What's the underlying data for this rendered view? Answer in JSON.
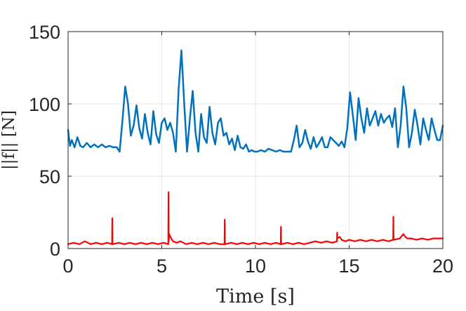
{
  "chart_data": {
    "type": "line",
    "title": "",
    "xlabel": "Time [s]",
    "ylabel": "||f|| [N]",
    "xlim": [
      0,
      20
    ],
    "ylim": [
      0,
      150
    ],
    "xticks": [
      0,
      5,
      10,
      15,
      20
    ],
    "yticks": [
      0,
      50,
      100,
      150
    ],
    "xtick_labels": [
      "0",
      "5",
      "10",
      "15",
      "20"
    ],
    "ytick_labels": [
      "0",
      "50",
      "100",
      "150"
    ],
    "grid": true,
    "legend": "none",
    "series": [
      {
        "color": "#0072BD",
        "x": [
          0,
          0.1,
          0.2,
          0.35,
          0.5,
          0.65,
          0.8,
          1.0,
          1.2,
          1.4,
          1.6,
          1.8,
          2.0,
          2.2,
          2.4,
          2.6,
          2.75,
          2.9,
          3.05,
          3.2,
          3.35,
          3.5,
          3.65,
          3.8,
          3.95,
          4.1,
          4.25,
          4.4,
          4.55,
          4.7,
          4.85,
          5.0,
          5.15,
          5.3,
          5.45,
          5.6,
          5.75,
          5.9,
          6.05,
          6.2,
          6.35,
          6.5,
          6.65,
          6.8,
          6.95,
          7.1,
          7.25,
          7.4,
          7.55,
          7.7,
          7.85,
          8.0,
          8.15,
          8.3,
          8.45,
          8.6,
          8.75,
          8.9,
          9.05,
          9.2,
          9.35,
          9.5,
          9.65,
          9.8,
          9.95,
          10.1,
          10.3,
          10.5,
          10.7,
          10.9,
          11.1,
          11.3,
          11.5,
          11.7,
          11.9,
          12.05,
          12.2,
          12.35,
          12.5,
          12.65,
          12.8,
          12.95,
          13.1,
          13.25,
          13.4,
          13.55,
          13.7,
          13.85,
          14.0,
          14.15,
          14.3,
          14.45,
          14.6,
          14.75,
          14.9,
          15.05,
          15.2,
          15.35,
          15.5,
          15.65,
          15.8,
          15.95,
          16.1,
          16.25,
          16.4,
          16.55,
          16.7,
          16.85,
          17.0,
          17.15,
          17.3,
          17.45,
          17.6,
          17.75,
          17.9,
          18.05,
          18.2,
          18.35,
          18.5,
          18.65,
          18.8,
          18.95,
          19.1,
          19.25,
          19.4,
          19.55,
          19.7,
          19.85,
          20.0
        ],
        "y": [
          82,
          71,
          75,
          70,
          77,
          71,
          70,
          73,
          70,
          72,
          70,
          72,
          70,
          71,
          70,
          70,
          67,
          88,
          112,
          100,
          78,
          85,
          99,
          83,
          76,
          93,
          80,
          72,
          95,
          79,
          73,
          87,
          90,
          82,
          87,
          80,
          67,
          110,
          137,
          100,
          67,
          90,
          109,
          80,
          67,
          93,
          77,
          73,
          98,
          80,
          72,
          87,
          90,
          78,
          80,
          72,
          76,
          68,
          78,
          70,
          69,
          72,
          67,
          68,
          67,
          67,
          68,
          67,
          69,
          68,
          67,
          68,
          67,
          67,
          67,
          75,
          85,
          70,
          73,
          82,
          74,
          69,
          77,
          70,
          73,
          77,
          70,
          70,
          77,
          75,
          73,
          71,
          74,
          70,
          83,
          108,
          92,
          75,
          104,
          90,
          80,
          97,
          85,
          90,
          95,
          85,
          93,
          87,
          90,
          92,
          84,
          97,
          70,
          85,
          112,
          97,
          70,
          80,
          96,
          85,
          72,
          90,
          82,
          75,
          90,
          82,
          75,
          75,
          85
        ]
      },
      {
        "color": "#FF0000",
        "x": [
          0,
          0.3,
          0.6,
          0.9,
          1.2,
          1.5,
          1.8,
          2.1,
          2.35,
          2.36,
          2.37,
          2.4,
          2.7,
          3.0,
          3.3,
          3.6,
          3.9,
          4.2,
          4.5,
          4.8,
          5.1,
          5.35,
          5.36,
          5.37,
          5.4,
          5.5,
          5.6,
          5.8,
          6.0,
          6.3,
          6.6,
          6.9,
          7.2,
          7.5,
          7.8,
          8.1,
          8.35,
          8.36,
          8.37,
          8.4,
          8.7,
          9.0,
          9.3,
          9.6,
          9.9,
          10.2,
          10.5,
          10.8,
          11.1,
          11.35,
          11.36,
          11.37,
          11.4,
          11.7,
          12.0,
          12.3,
          12.6,
          12.9,
          13.2,
          13.5,
          13.8,
          14.1,
          14.35,
          14.36,
          14.37,
          14.5,
          14.6,
          14.8,
          15.0,
          15.3,
          15.6,
          15.9,
          16.2,
          16.5,
          16.8,
          17.1,
          17.35,
          17.36,
          17.37,
          17.4,
          17.7,
          17.9,
          18.0,
          18.1,
          18.3,
          18.6,
          18.9,
          19.2,
          19.5,
          19.8,
          20.0
        ],
        "y": [
          3,
          4,
          3,
          5,
          3,
          4,
          3,
          4,
          3,
          21,
          4,
          3,
          4,
          3,
          4,
          3,
          4,
          3,
          4,
          3,
          4,
          3,
          39,
          5,
          10,
          7,
          5,
          4,
          5,
          3,
          4,
          3,
          4,
          3,
          4,
          3,
          3,
          20,
          4,
          3,
          4,
          3,
          4,
          3,
          4,
          3,
          4,
          3,
          4,
          3,
          15,
          4,
          3,
          4,
          3,
          4,
          3,
          4,
          5,
          4,
          5,
          4,
          5,
          11,
          7,
          8,
          6,
          5,
          6,
          5,
          6,
          5,
          6,
          5,
          6,
          5,
          6,
          22,
          7,
          6,
          7,
          10,
          8,
          7,
          7,
          6,
          7,
          6,
          7,
          7,
          7
        ]
      }
    ]
  }
}
